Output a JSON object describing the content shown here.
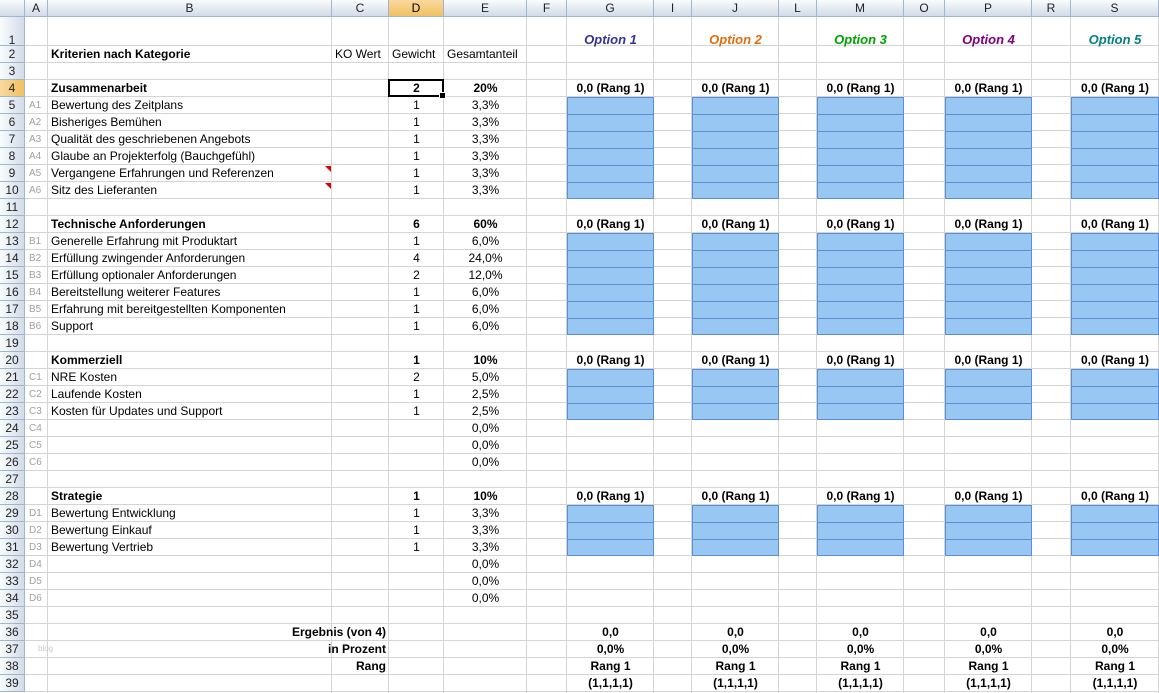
{
  "columns": [
    "A",
    "B",
    "C",
    "D",
    "E",
    "F",
    "G",
    "I",
    "J",
    "L",
    "M",
    "O",
    "P",
    "R",
    "S"
  ],
  "rows": [
    "1",
    "2",
    "3",
    "4",
    "5",
    "6",
    "7",
    "8",
    "9",
    "10",
    "11",
    "12",
    "13",
    "14",
    "15",
    "16",
    "17",
    "18",
    "19",
    "20",
    "21",
    "22",
    "23",
    "24",
    "25",
    "26",
    "27",
    "28",
    "29",
    "30",
    "31",
    "32",
    "33",
    "34",
    "35",
    "36",
    "37",
    "38",
    "39"
  ],
  "header": {
    "title": "Kriterien nach Kategorie",
    "ko": "KO Wert",
    "gewicht": "Gewicht",
    "gesamtanteil": "Gesamtanteil"
  },
  "options": [
    {
      "label": "Option 1",
      "color": "#333399"
    },
    {
      "label": "Option 2",
      "color": "#e46c0a"
    },
    {
      "label": "Option 3",
      "color": "#00a000"
    },
    {
      "label": "Option 4",
      "color": "#800080"
    },
    {
      "label": "Option 5",
      "color": "#008080"
    }
  ],
  "categories": [
    {
      "name": "Zusammenarbeit",
      "gewicht": "2",
      "anteil": "20%",
      "score": "0,0 (Rang 1)",
      "items": [
        {
          "code": "A1",
          "name": "Bewertung des Zeitplans",
          "gewicht": "1",
          "anteil": "3,3%"
        },
        {
          "code": "A2",
          "name": "Bisheriges Bemühen",
          "gewicht": "1",
          "anteil": "3,3%"
        },
        {
          "code": "A3",
          "name": "Qualität des geschriebenen Angebots",
          "gewicht": "1",
          "anteil": "3,3%"
        },
        {
          "code": "A4",
          "name": "Glaube an Projekterfolg (Bauchgefühl)",
          "gewicht": "1",
          "anteil": "3,3%"
        },
        {
          "code": "A5",
          "name": "Vergangene Erfahrungen und Referenzen",
          "gewicht": "1",
          "anteil": "3,3%"
        },
        {
          "code": "A6",
          "name": "Sitz des Lieferanten",
          "gewicht": "1",
          "anteil": "3,3%"
        }
      ]
    },
    {
      "name": "Technische Anforderungen",
      "gewicht": "6",
      "anteil": "60%",
      "score": "0,0 (Rang 1)",
      "items": [
        {
          "code": "B1",
          "name": "Generelle Erfahrung mit Produktart",
          "gewicht": "1",
          "anteil": "6,0%"
        },
        {
          "code": "B2",
          "name": "Erfüllung zwingender Anforderungen",
          "gewicht": "4",
          "anteil": "24,0%"
        },
        {
          "code": "B3",
          "name": "Erfüllung optionaler Anforderungen",
          "gewicht": "2",
          "anteil": "12,0%"
        },
        {
          "code": "B4",
          "name": "Bereitstellung weiterer Features",
          "gewicht": "1",
          "anteil": "6,0%"
        },
        {
          "code": "B5",
          "name": "Erfahrung mit bereitgestellten Komponenten",
          "gewicht": "1",
          "anteil": "6,0%"
        },
        {
          "code": "B6",
          "name": "Support",
          "gewicht": "1",
          "anteil": "6,0%"
        }
      ]
    },
    {
      "name": "Kommerziell",
      "gewicht": "1",
      "anteil": "10%",
      "score": "0,0 (Rang 1)",
      "items": [
        {
          "code": "C1",
          "name": "NRE Kosten",
          "gewicht": "2",
          "anteil": "5,0%"
        },
        {
          "code": "C2",
          "name": "Laufende Kosten",
          "gewicht": "1",
          "anteil": "2,5%"
        },
        {
          "code": "C3",
          "name": "Kosten für Updates und Support",
          "gewicht": "1",
          "anteil": "2,5%"
        },
        {
          "code": "C4",
          "name": "",
          "gewicht": "",
          "anteil": "0,0%"
        },
        {
          "code": "C5",
          "name": "",
          "gewicht": "",
          "anteil": "0,0%"
        },
        {
          "code": "C6",
          "name": "",
          "gewicht": "",
          "anteil": "0,0%"
        }
      ]
    },
    {
      "name": "Strategie",
      "gewicht": "1",
      "anteil": "10%",
      "score": "0,0 (Rang 1)",
      "items": [
        {
          "code": "D1",
          "name": "Bewertung Entwicklung",
          "gewicht": "1",
          "anteil": "3,3%"
        },
        {
          "code": "D2",
          "name": "Bewertung Einkauf",
          "gewicht": "1",
          "anteil": "3,3%"
        },
        {
          "code": "D3",
          "name": "Bewertung Vertrieb",
          "gewicht": "1",
          "anteil": "3,3%"
        },
        {
          "code": "D4",
          "name": "",
          "gewicht": "",
          "anteil": "0,0%"
        },
        {
          "code": "D5",
          "name": "",
          "gewicht": "",
          "anteil": "0,0%"
        },
        {
          "code": "D6",
          "name": "",
          "gewicht": "",
          "anteil": "0,0%"
        }
      ]
    }
  ],
  "results": {
    "ergebnis_label": "Ergebnis (von 4)",
    "prozent_label": "in Prozent",
    "rang_label": "Rang",
    "ergebnis": "0,0",
    "prozent": "0,0%",
    "rang": "Rang 1",
    "rang_detail": "(1,1,1,1)"
  },
  "watermark": "blog",
  "colors": {
    "input_fill": "#99c7f3",
    "header_fill": "#d3dbe9",
    "selected_header": "#f1c15f"
  }
}
